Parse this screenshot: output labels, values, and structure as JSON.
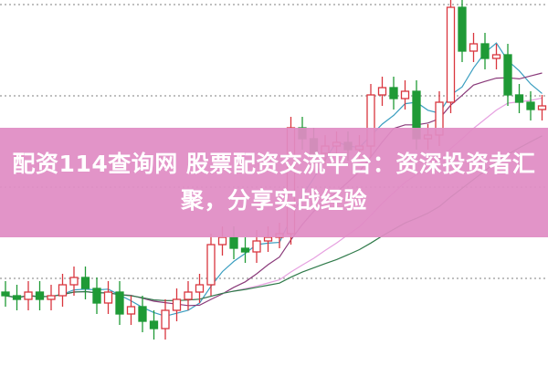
{
  "banner": {
    "title": "配资114查询网 股票配资交流平台：资深投资者汇聚，分享实战经验"
  },
  "colors": {
    "banner_bg": "#e08cc4",
    "up_candle": "#d9363e",
    "down_candle": "#1f9a36",
    "grid": "#999999",
    "ma5": "#3a9ec0",
    "ma10": "#8a3a7a",
    "ma20": "#e6a0e0",
    "ma30": "#2f7a4a"
  },
  "chart_data": {
    "type": "candlestick",
    "title": "",
    "grid": "horizontal dotted",
    "open": [
      20,
      19,
      18,
      20,
      18,
      19,
      22,
      24,
      21,
      17,
      20,
      14,
      16,
      12,
      10,
      15,
      18,
      20,
      22,
      33,
      35,
      32,
      31,
      34,
      35,
      36,
      65,
      62,
      58,
      60,
      61,
      59,
      60,
      74,
      76,
      73,
      75,
      62,
      63,
      72,
      98,
      86,
      88,
      84,
      85,
      74,
      72,
      70
    ],
    "close": [
      19,
      18,
      20,
      18,
      19,
      22,
      24,
      21,
      17,
      20,
      14,
      16,
      12,
      10,
      15,
      18,
      20,
      22,
      33,
      35,
      32,
      31,
      34,
      35,
      36,
      65,
      62,
      58,
      60,
      61,
      59,
      60,
      74,
      76,
      73,
      75,
      62,
      63,
      72,
      98,
      86,
      88,
      84,
      85,
      74,
      72,
      70,
      71
    ],
    "high": [
      23,
      22,
      23,
      23,
      22,
      25,
      27,
      27,
      24,
      23,
      23,
      19,
      19,
      15,
      18,
      21,
      23,
      25,
      36,
      38,
      38,
      35,
      37,
      38,
      39,
      68,
      68,
      65,
      63,
      64,
      64,
      63,
      77,
      79,
      79,
      78,
      78,
      66,
      75,
      100,
      100,
      91,
      91,
      88,
      88,
      77,
      75,
      74
    ],
    "low": [
      16,
      15,
      15,
      15,
      15,
      16,
      19,
      18,
      14,
      14,
      11,
      11,
      9,
      7,
      7,
      12,
      15,
      17,
      19,
      30,
      29,
      28,
      28,
      31,
      32,
      33,
      59,
      55,
      55,
      57,
      56,
      56,
      57,
      71,
      70,
      70,
      59,
      59,
      60,
      69,
      83,
      83,
      81,
      81,
      71,
      69,
      67,
      67
    ],
    "moving_averages": [
      5,
      10,
      20,
      30
    ],
    "ylim": [
      0,
      100
    ]
  }
}
